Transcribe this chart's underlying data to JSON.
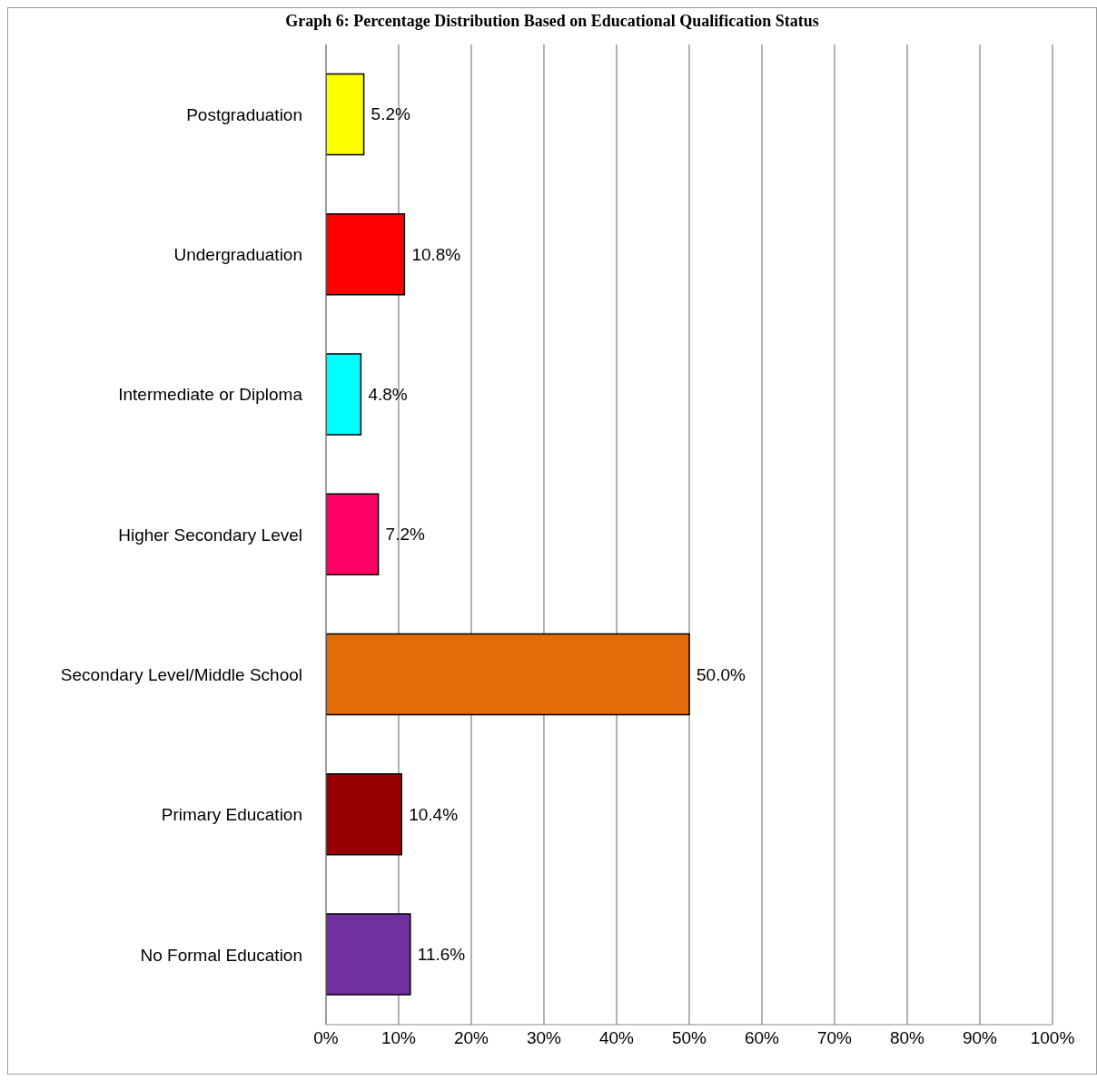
{
  "chart_data": {
    "type": "bar",
    "orientation": "horizontal",
    "title": "Graph 6: Percentage Distribution Based on Educational Qualification Status",
    "categories": [
      "Postgraduation",
      "Undergraduation",
      "Intermediate or Diploma",
      "Higher Secondary Level",
      "Secondary Level/Middle School",
      "Primary Education",
      "No Formal Education"
    ],
    "values": [
      5.2,
      10.8,
      4.8,
      7.2,
      50.0,
      10.4,
      11.6
    ],
    "value_labels": [
      "5.2%",
      "10.8%",
      "4.8%",
      "7.2%",
      "50.0%",
      "10.4%",
      "11.6%"
    ],
    "colors": [
      "#ffff00",
      "#ff0000",
      "#00ffff",
      "#ff0066",
      "#e36c0a",
      "#990000",
      "#7030a0"
    ],
    "xlim": [
      0,
      100
    ],
    "xticks": [
      {
        "value": 0,
        "label": "0%"
      },
      {
        "value": 10,
        "label": "10%"
      },
      {
        "value": 20,
        "label": "20%"
      },
      {
        "value": 30,
        "label": "30%"
      },
      {
        "value": 40,
        "label": "40%"
      },
      {
        "value": 50,
        "label": "50%"
      },
      {
        "value": 60,
        "label": "60%"
      },
      {
        "value": 70,
        "label": "70%"
      },
      {
        "value": 80,
        "label": "80%"
      },
      {
        "value": 90,
        "label": "90%"
      },
      {
        "value": 100,
        "label": "100%"
      }
    ],
    "grid": "x",
    "legend": false
  }
}
